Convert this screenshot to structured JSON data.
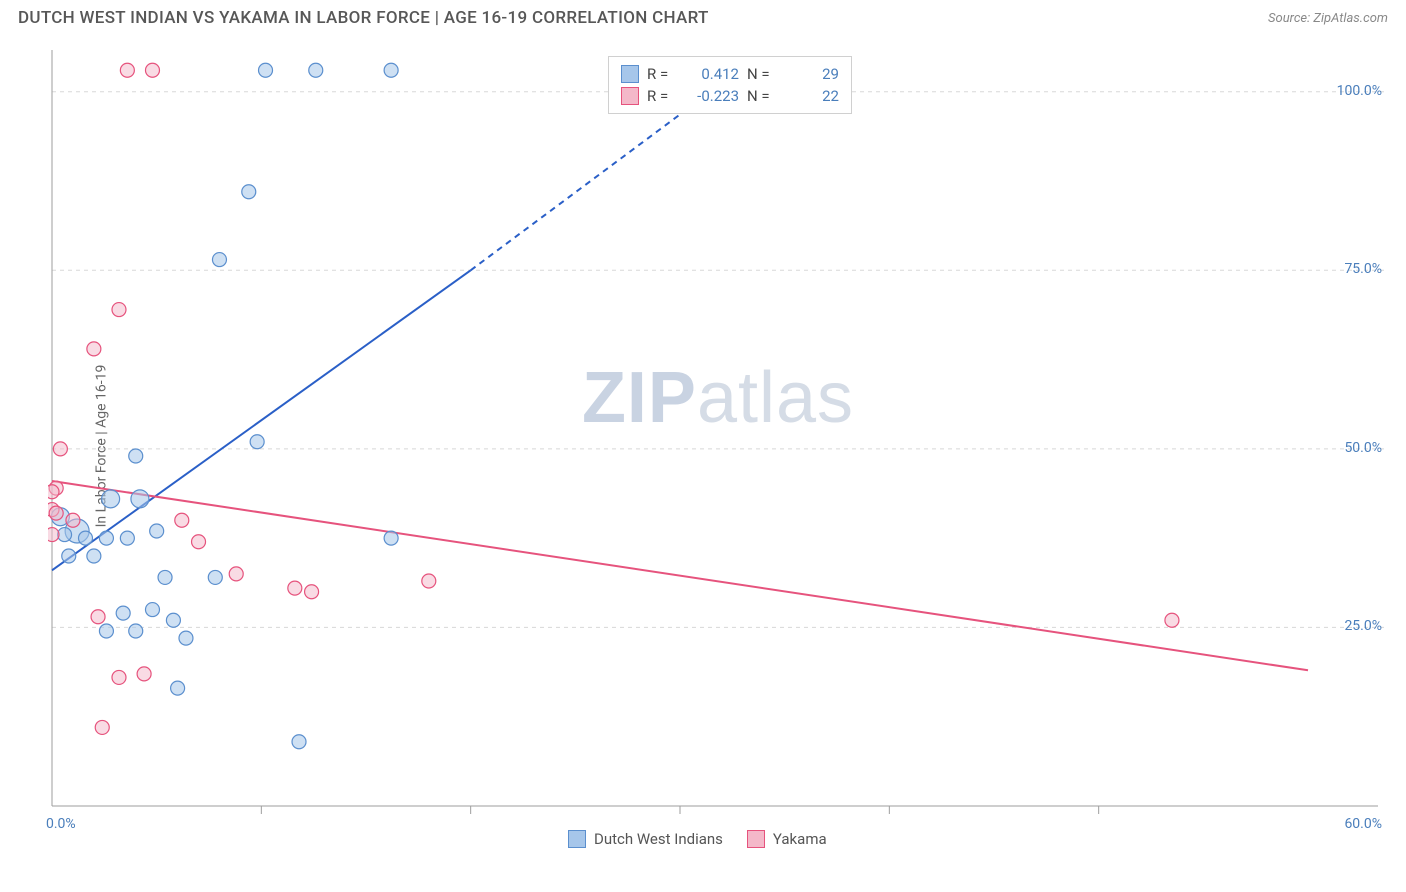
{
  "title": "DUTCH WEST INDIAN VS YAKAMA IN LABOR FORCE | AGE 16-19 CORRELATION CHART",
  "source": "Source: ZipAtlas.com",
  "watermark_zip": "ZIP",
  "watermark_atlas": "atlas",
  "ylabel": "In Labor Force | Age 16-19",
  "chart": {
    "type": "scatter",
    "background_color": "#ffffff",
    "grid_color": "#d8d8d8",
    "axis_color": "#9e9e9e",
    "tick_label_color": "#4a7ebb",
    "label_fontsize": 14,
    "title_fontsize": 17,
    "xlim": [
      0,
      60
    ],
    "ylim": [
      0,
      105
    ],
    "x_ticks": [
      {
        "pos": 0,
        "label": "0.0%"
      },
      {
        "pos": 60,
        "label": "60.0%"
      }
    ],
    "x_minor_ticks": [
      10,
      20,
      30,
      40,
      50
    ],
    "y_ticks": [
      {
        "pos": 25,
        "label": "25.0%"
      },
      {
        "pos": 50,
        "label": "50.0%"
      },
      {
        "pos": 75,
        "label": "75.0%"
      },
      {
        "pos": 100,
        "label": "100.0%"
      }
    ],
    "series": [
      {
        "name": "Dutch West Indians",
        "marker_color": "#a6c6ea",
        "marker_stroke": "#5b8fce",
        "marker_fill_opacity": 0.55,
        "line_color": "#2a5fc7",
        "line_width": 2,
        "r_value": "0.412",
        "n_value": "29",
        "regression": {
          "x1": 0,
          "y1": 33,
          "x2": 20,
          "y2": 75,
          "dash_from_x": 20,
          "dash_to_x": 31,
          "dash_to_y": 99
        },
        "points": [
          {
            "x": 10.2,
            "y": 103,
            "r": 7
          },
          {
            "x": 12.6,
            "y": 103,
            "r": 7
          },
          {
            "x": 16.2,
            "y": 103,
            "r": 7
          },
          {
            "x": 9.4,
            "y": 86,
            "r": 7
          },
          {
            "x": 8.0,
            "y": 76.5,
            "r": 7
          },
          {
            "x": 4.0,
            "y": 49,
            "r": 7
          },
          {
            "x": 1.2,
            "y": 38.5,
            "r": 12
          },
          {
            "x": 0.4,
            "y": 40.5,
            "r": 9
          },
          {
            "x": 2.8,
            "y": 43,
            "r": 9
          },
          {
            "x": 4.2,
            "y": 43,
            "r": 9
          },
          {
            "x": 0.6,
            "y": 38,
            "r": 7
          },
          {
            "x": 1.6,
            "y": 37.5,
            "r": 7
          },
          {
            "x": 2.6,
            "y": 37.5,
            "r": 7
          },
          {
            "x": 3.6,
            "y": 37.5,
            "r": 7
          },
          {
            "x": 5.0,
            "y": 38.5,
            "r": 7
          },
          {
            "x": 0.8,
            "y": 35,
            "r": 7
          },
          {
            "x": 2.0,
            "y": 35,
            "r": 7
          },
          {
            "x": 5.4,
            "y": 32,
            "r": 7
          },
          {
            "x": 7.8,
            "y": 32,
            "r": 7
          },
          {
            "x": 16.2,
            "y": 37.5,
            "r": 7
          },
          {
            "x": 4.8,
            "y": 27.5,
            "r": 7
          },
          {
            "x": 3.4,
            "y": 27,
            "r": 7
          },
          {
            "x": 5.8,
            "y": 26,
            "r": 7
          },
          {
            "x": 2.6,
            "y": 24.5,
            "r": 7
          },
          {
            "x": 4.0,
            "y": 24.5,
            "r": 7
          },
          {
            "x": 6.4,
            "y": 23.5,
            "r": 7
          },
          {
            "x": 6.0,
            "y": 16.5,
            "r": 7
          },
          {
            "x": 11.8,
            "y": 9,
            "r": 7
          },
          {
            "x": 9.8,
            "y": 51,
            "r": 7
          }
        ]
      },
      {
        "name": "Yakama",
        "marker_color": "#f4b8c9",
        "marker_stroke": "#e6537d",
        "marker_fill_opacity": 0.5,
        "line_color": "#e6537d",
        "line_width": 2,
        "r_value": "-0.223",
        "n_value": "22",
        "regression": {
          "x1": 0,
          "y1": 45.5,
          "x2": 60,
          "y2": 19
        },
        "points": [
          {
            "x": 3.6,
            "y": 103,
            "r": 7
          },
          {
            "x": 4.8,
            "y": 103,
            "r": 7
          },
          {
            "x": 3.2,
            "y": 69.5,
            "r": 7
          },
          {
            "x": 2.0,
            "y": 64,
            "r": 7
          },
          {
            "x": 0.4,
            "y": 50,
            "r": 7
          },
          {
            "x": 0.2,
            "y": 44.5,
            "r": 7
          },
          {
            "x": 0.0,
            "y": 41.5,
            "r": 7
          },
          {
            "x": 0.2,
            "y": 41,
            "r": 7
          },
          {
            "x": 0.0,
            "y": 38,
            "r": 7
          },
          {
            "x": 1.0,
            "y": 40,
            "r": 7
          },
          {
            "x": 6.2,
            "y": 40,
            "r": 7
          },
          {
            "x": 7.0,
            "y": 37,
            "r": 7
          },
          {
            "x": 8.8,
            "y": 32.5,
            "r": 7
          },
          {
            "x": 11.6,
            "y": 30.5,
            "r": 7
          },
          {
            "x": 12.4,
            "y": 30,
            "r": 7
          },
          {
            "x": 18.0,
            "y": 31.5,
            "r": 7
          },
          {
            "x": 2.2,
            "y": 26.5,
            "r": 7
          },
          {
            "x": 3.2,
            "y": 18,
            "r": 7
          },
          {
            "x": 4.4,
            "y": 18.5,
            "r": 7
          },
          {
            "x": 2.4,
            "y": 11,
            "r": 7
          },
          {
            "x": 53.5,
            "y": 26,
            "r": 7
          },
          {
            "x": 0.0,
            "y": 44,
            "r": 7
          }
        ]
      }
    ]
  },
  "correlation_box": {
    "rows": [
      {
        "swatch_fill": "#a6c6ea",
        "swatch_stroke": "#5b8fce",
        "r_label": "R =",
        "r_val": "0.412",
        "r_color": "#4a7ebb",
        "n_label": "N =",
        "n_val": "29",
        "n_color": "#4a7ebb"
      },
      {
        "swatch_fill": "#f4b8c9",
        "swatch_stroke": "#e6537d",
        "r_label": "R =",
        "r_val": "-0.223",
        "r_color": "#4a7ebb",
        "n_label": "N =",
        "n_val": "22",
        "n_color": "#4a7ebb"
      }
    ]
  },
  "legend": {
    "items": [
      {
        "swatch_fill": "#a6c6ea",
        "swatch_stroke": "#5b8fce",
        "label": "Dutch West Indians"
      },
      {
        "swatch_fill": "#f4b8c9",
        "swatch_stroke": "#e6537d",
        "label": "Yakama"
      }
    ]
  }
}
